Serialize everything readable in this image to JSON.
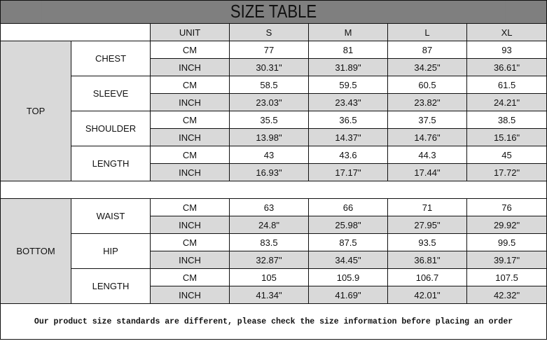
{
  "title": "SIZE TABLE",
  "header": {
    "unit": "UNIT",
    "sizes": [
      "S",
      "M",
      "L",
      "XL"
    ]
  },
  "colors": {
    "title_bg": "#7f7f7f",
    "shaded": "#d9d9d9"
  },
  "sections": [
    {
      "name": "TOP",
      "measures": [
        {
          "name": "CHEST",
          "rows": [
            {
              "unit": "CM",
              "values": [
                "77",
                "81",
                "87",
                "93"
              ]
            },
            {
              "unit": "INCH",
              "values": [
                "30.31\"",
                "31.89\"",
                "34.25\"",
                "36.61\""
              ]
            }
          ]
        },
        {
          "name": "SLEEVE",
          "rows": [
            {
              "unit": "CM",
              "values": [
                "58.5",
                "59.5",
                "60.5",
                "61.5"
              ]
            },
            {
              "unit": "INCH",
              "values": [
                "23.03\"",
                "23.43\"",
                "23.82\"",
                "24.21\""
              ]
            }
          ]
        },
        {
          "name": "SHOULDER",
          "rows": [
            {
              "unit": "CM",
              "values": [
                "35.5",
                "36.5",
                "37.5",
                "38.5"
              ]
            },
            {
              "unit": "INCH",
              "values": [
                "13.98\"",
                "14.37\"",
                "14.76\"",
                "15.16\""
              ]
            }
          ]
        },
        {
          "name": "LENGTH",
          "rows": [
            {
              "unit": "CM",
              "values": [
                "43",
                "43.6",
                "44.3",
                "45"
              ]
            },
            {
              "unit": "INCH",
              "values": [
                "16.93\"",
                "17.17\"",
                "17.44\"",
                "17.72\""
              ]
            }
          ]
        }
      ]
    },
    {
      "name": "BOTTOM",
      "measures": [
        {
          "name": "WAIST",
          "rows": [
            {
              "unit": "CM",
              "values": [
                "63",
                "66",
                "71",
                "76"
              ]
            },
            {
              "unit": "INCH",
              "values": [
                "24.8\"",
                "25.98\"",
                "27.95\"",
                "29.92\""
              ]
            }
          ]
        },
        {
          "name": "HIP",
          "rows": [
            {
              "unit": "CM",
              "values": [
                "83.5",
                "87.5",
                "93.5",
                "99.5"
              ]
            },
            {
              "unit": "INCH",
              "values": [
                "32.87\"",
                "34.45\"",
                "36.81\"",
                "39.17\""
              ]
            }
          ]
        },
        {
          "name": "LENGTH",
          "rows": [
            {
              "unit": "CM",
              "values": [
                "105",
                "105.9",
                "106.7",
                "107.5"
              ]
            },
            {
              "unit": "INCH",
              "values": [
                "41.34\"",
                "41.69\"",
                "42.01\"",
                "42.32\""
              ]
            }
          ]
        }
      ]
    }
  ],
  "footer": "Our product size standards are different, please check the size information before placing an order"
}
